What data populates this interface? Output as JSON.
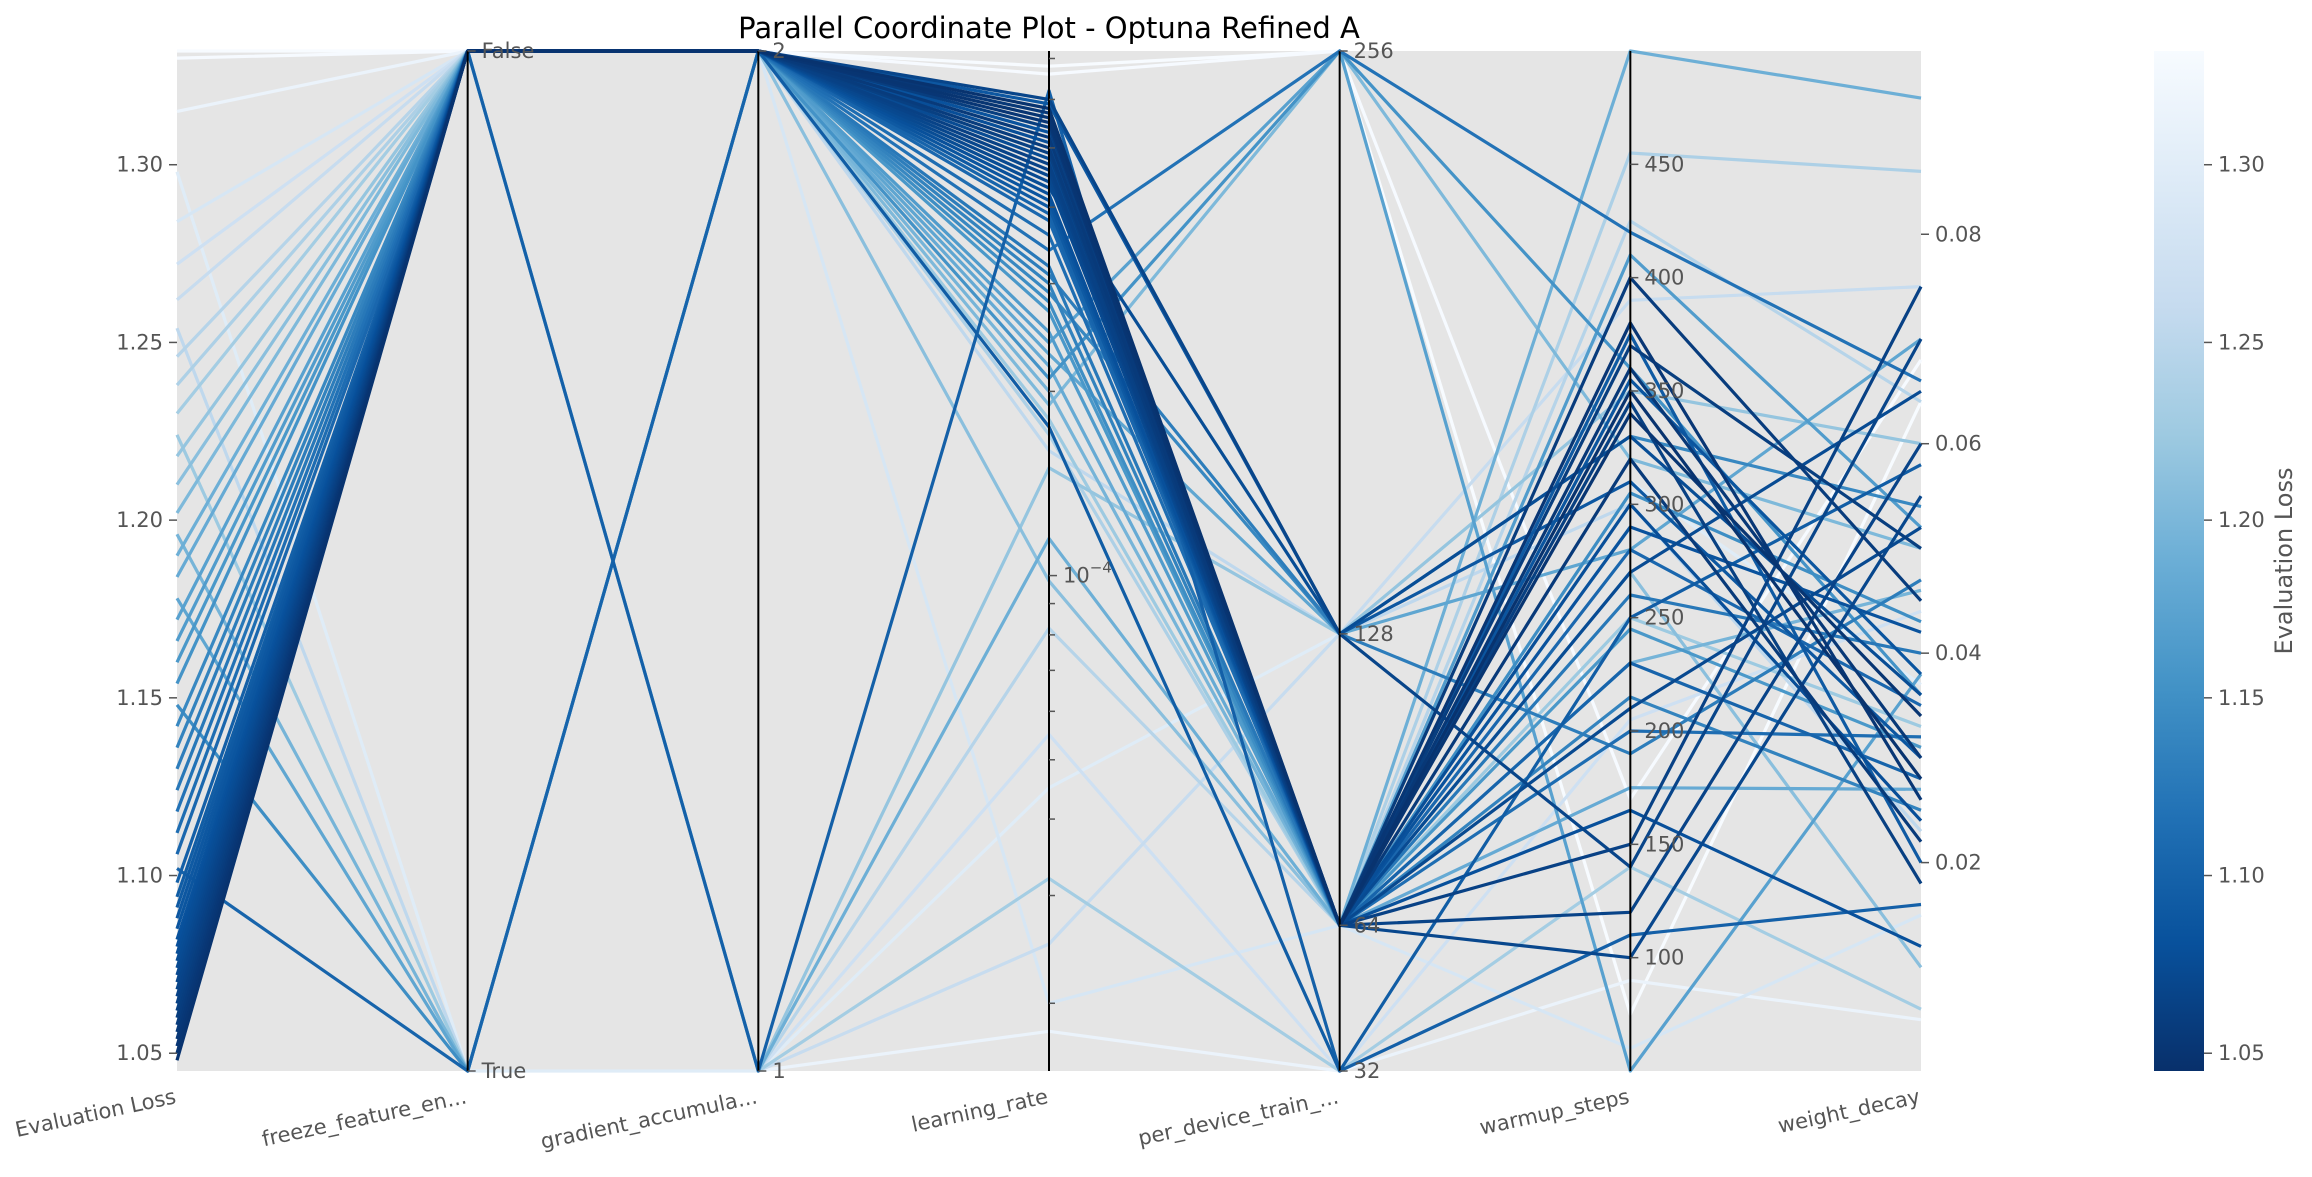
{
  "chart_data": {
    "type": "parallel_coordinates",
    "title": "Parallel Coordinate Plot - Optuna Refined A",
    "axes": [
      {
        "key": "eval",
        "label": "Evaluation Loss",
        "scale": "linear",
        "range": [
          1.045,
          1.332
        ],
        "ticks": [
          {
            "value": 1.05,
            "label": "1.05"
          },
          {
            "value": 1.1,
            "label": "1.10"
          },
          {
            "value": 1.15,
            "label": "1.15"
          },
          {
            "value": 1.2,
            "label": "1.20"
          },
          {
            "value": 1.25,
            "label": "1.25"
          },
          {
            "value": 1.3,
            "label": "1.30"
          }
        ],
        "tick_side": "left"
      },
      {
        "key": "freeze",
        "label": "freeze_feature_en...",
        "scale": "categorical",
        "range": [
          0,
          1
        ],
        "ticks": [
          {
            "value": 0,
            "label": "True"
          },
          {
            "value": 1,
            "label": "False"
          }
        ],
        "tick_side": "right"
      },
      {
        "key": "grad",
        "label": "gradient_accumula...",
        "scale": "categorical",
        "range": [
          1,
          2
        ],
        "ticks": [
          {
            "value": 1,
            "label": "1"
          },
          {
            "value": 2,
            "label": "2"
          }
        ],
        "tick_side": "right"
      },
      {
        "key": "lr",
        "label": "learning_rate",
        "scale": "log",
        "range": [
          1.55e-05,
          0.00072
        ],
        "ticks": [
          {
            "value": 0.0001,
            "label": "10",
            "sup": "−4"
          }
        ],
        "minor_ticks": [
          2e-05,
          3e-05,
          4e-05,
          5e-05,
          6e-05,
          7e-05,
          8e-05,
          9e-05,
          0.0002,
          0.0003,
          0.0004,
          0.0005,
          0.0006,
          0.0007
        ],
        "tick_side": "right"
      },
      {
        "key": "batch",
        "label": "per_device_train_...",
        "scale": "categorical",
        "range": [
          32,
          256
        ],
        "ticks": [
          {
            "value": 32,
            "label": "32"
          },
          {
            "value": 64,
            "label": "64"
          },
          {
            "value": 128,
            "label": "128"
          },
          {
            "value": 256,
            "label": "256"
          }
        ],
        "tick_side": "right"
      },
      {
        "key": "warm",
        "label": "warmup_steps",
        "scale": "linear",
        "range": [
          50,
          500
        ],
        "ticks": [
          {
            "value": 100,
            "label": "100"
          },
          {
            "value": 150,
            "label": "150"
          },
          {
            "value": 200,
            "label": "200"
          },
          {
            "value": 250,
            "label": "250"
          },
          {
            "value": 300,
            "label": "300"
          },
          {
            "value": 350,
            "label": "350"
          },
          {
            "value": 400,
            "label": "400"
          },
          {
            "value": 450,
            "label": "450"
          }
        ],
        "tick_side": "right"
      },
      {
        "key": "wd",
        "label": "weight_decay",
        "scale": "linear",
        "range": [
          0.0001,
          0.0975
        ],
        "ticks": [
          {
            "value": 0.02,
            "label": "0.02"
          },
          {
            "value": 0.04,
            "label": "0.04"
          },
          {
            "value": 0.06,
            "label": "0.06"
          },
          {
            "value": 0.08,
            "label": "0.08"
          }
        ],
        "tick_side": "right"
      }
    ],
    "colorbar": {
      "label": "Evaluation Loss",
      "range": [
        1.045,
        1.332
      ],
      "ticks": [
        {
          "value": 1.05,
          "label": "1.05"
        },
        {
          "value": 1.1,
          "label": "1.10"
        },
        {
          "value": 1.15,
          "label": "1.15"
        },
        {
          "value": 1.2,
          "label": "1.20"
        },
        {
          "value": 1.25,
          "label": "1.25"
        },
        {
          "value": 1.3,
          "label": "1.30"
        }
      ],
      "colors": [
        "#08306b",
        "#08519c",
        "#2171b5",
        "#4292c6",
        "#6baed6",
        "#9ecae1",
        "#c6dbef",
        "#deebf7",
        "#f7fbff"
      ]
    },
    "trials": [
      {
        "eval": 1.048,
        "freeze": 1,
        "grad": 2,
        "lr": 0.00058,
        "batch": 64,
        "warm": 350,
        "wd": 0.028
      },
      {
        "eval": 1.05,
        "freeze": 1,
        "grad": 2,
        "lr": 0.00056,
        "batch": 64,
        "warm": 340,
        "wd": 0.034
      },
      {
        "eval": 1.052,
        "freeze": 1,
        "grad": 2,
        "lr": 0.00055,
        "batch": 64,
        "warm": 380,
        "wd": 0.026
      },
      {
        "eval": 1.054,
        "freeze": 1,
        "grad": 2,
        "lr": 0.00057,
        "batch": 64,
        "warm": 360,
        "wd": 0.03
      },
      {
        "eval": 1.056,
        "freeze": 1,
        "grad": 2,
        "lr": 0.00052,
        "batch": 64,
        "warm": 320,
        "wd": 0.022
      },
      {
        "eval": 1.058,
        "freeze": 1,
        "grad": 2,
        "lr": 0.0005,
        "batch": 64,
        "warm": 400,
        "wd": 0.045
      },
      {
        "eval": 1.06,
        "freeze": 1,
        "grad": 2,
        "lr": 0.00054,
        "batch": 64,
        "warm": 370,
        "wd": 0.05
      },
      {
        "eval": 1.062,
        "freeze": 1,
        "grad": 2,
        "lr": 0.00049,
        "batch": 64,
        "warm": 345,
        "wd": 0.018
      },
      {
        "eval": 1.064,
        "freeze": 1,
        "grad": 2,
        "lr": 0.00047,
        "batch": 64,
        "warm": 150,
        "wd": 0.075
      },
      {
        "eval": 1.066,
        "freeze": 1,
        "grad": 2,
        "lr": 0.00046,
        "batch": 64,
        "warm": 120,
        "wd": 0.06
      },
      {
        "eval": 1.068,
        "freeze": 1,
        "grad": 2,
        "lr": 0.0006,
        "batch": 128,
        "warm": 140,
        "wd": 0.07
      },
      {
        "eval": 1.07,
        "freeze": 1,
        "grad": 2,
        "lr": 0.00045,
        "batch": 64,
        "warm": 100,
        "wd": 0.055
      },
      {
        "eval": 1.072,
        "freeze": 1,
        "grad": 2,
        "lr": 0.00044,
        "batch": 64,
        "warm": 210,
        "wd": 0.052
      },
      {
        "eval": 1.074,
        "freeze": 1,
        "grad": 2,
        "lr": 0.00048,
        "batch": 64,
        "warm": 270,
        "wd": 0.065
      },
      {
        "eval": 1.076,
        "freeze": 1,
        "grad": 2,
        "lr": 0.00043,
        "batch": 128,
        "warm": 330,
        "wd": 0.036
      },
      {
        "eval": 1.078,
        "freeze": 1,
        "grad": 2,
        "lr": 0.00051,
        "batch": 64,
        "warm": 300,
        "wd": 0.024
      },
      {
        "eval": 1.08,
        "freeze": 1,
        "grad": 2,
        "lr": 0.00042,
        "batch": 64,
        "warm": 165,
        "wd": 0.012
      },
      {
        "eval": 1.082,
        "freeze": 1,
        "grad": 2,
        "lr": 0.00053,
        "batch": 64,
        "warm": 290,
        "wd": 0.042
      },
      {
        "eval": 1.085,
        "freeze": 1,
        "grad": 2,
        "lr": 0.00041,
        "batch": 64,
        "warm": 355,
        "wd": 0.038
      },
      {
        "eval": 1.088,
        "freeze": 1,
        "grad": 2,
        "lr": 0.00059,
        "batch": 128,
        "warm": 310,
        "wd": 0.03
      },
      {
        "eval": 1.091,
        "freeze": 1,
        "grad": 2,
        "lr": 0.0004,
        "batch": 64,
        "warm": 375,
        "wd": 0.02
      },
      {
        "eval": 1.094,
        "freeze": 1,
        "grad": 2,
        "lr": 0.000175,
        "batch": 32,
        "warm": 250,
        "wd": 0.058
      },
      {
        "eval": 1.098,
        "freeze": 1,
        "grad": 1,
        "lr": 0.00062,
        "batch": 32,
        "warm": 110,
        "wd": 0.016
      },
      {
        "eval": 1.102,
        "freeze": 0,
        "grad": 2,
        "lr": 0.00039,
        "batch": 64,
        "warm": 230,
        "wd": 0.028
      },
      {
        "eval": 1.106,
        "freeze": 1,
        "grad": 2,
        "lr": 0.00038,
        "batch": 64,
        "warm": 280,
        "wd": 0.035
      },
      {
        "eval": 1.112,
        "freeze": 1,
        "grad": 2,
        "lr": 0.00036,
        "batch": 64,
        "warm": 200,
        "wd": 0.032
      },
      {
        "eval": 1.118,
        "freeze": 1,
        "grad": 2,
        "lr": 0.00034,
        "batch": 256,
        "warm": 420,
        "wd": 0.066
      },
      {
        "eval": 1.124,
        "freeze": 1,
        "grad": 2,
        "lr": 0.00032,
        "batch": 64,
        "warm": 260,
        "wd": 0.04
      },
      {
        "eval": 1.13,
        "freeze": 1,
        "grad": 2,
        "lr": 0.00031,
        "batch": 128,
        "warm": 190,
        "wd": 0.047
      },
      {
        "eval": 1.136,
        "freeze": 1,
        "grad": 2,
        "lr": 0.0003,
        "batch": 64,
        "warm": 215,
        "wd": 0.025
      },
      {
        "eval": 1.142,
        "freeze": 1,
        "grad": 2,
        "lr": 0.00029,
        "batch": 128,
        "warm": 330,
        "wd": 0.054
      },
      {
        "eval": 1.148,
        "freeze": 0,
        "grad": 2,
        "lr": 0.00028,
        "batch": 64,
        "warm": 305,
        "wd": 0.043
      },
      {
        "eval": 1.154,
        "freeze": 1,
        "grad": 2,
        "lr": 0.00021,
        "batch": 256,
        "warm": 360,
        "wd": 0.036
      },
      {
        "eval": 1.16,
        "freeze": 1,
        "grad": 2,
        "lr": 0.00027,
        "batch": 64,
        "warm": 245,
        "wd": 0.031
      },
      {
        "eval": 1.166,
        "freeze": 1,
        "grad": 2,
        "lr": 0.00025,
        "batch": 64,
        "warm": 410,
        "wd": 0.052
      },
      {
        "eval": 1.172,
        "freeze": 1,
        "grad": 2,
        "lr": 0.00024,
        "batch": 256,
        "warm": 50,
        "wd": 0.038
      },
      {
        "eval": 1.178,
        "freeze": 0,
        "grad": 2,
        "lr": 0.00023,
        "batch": 128,
        "warm": 280,
        "wd": 0.07
      },
      {
        "eval": 1.184,
        "freeze": 1,
        "grad": 2,
        "lr": 0.00022,
        "batch": 64,
        "warm": 175,
        "wd": 0.027
      },
      {
        "eval": 1.19,
        "freeze": 1,
        "grad": 1,
        "lr": 0.000115,
        "batch": 64,
        "warm": 500,
        "wd": 0.093
      },
      {
        "eval": 1.196,
        "freeze": 0,
        "grad": 2,
        "lr": 0.0002,
        "batch": 64,
        "warm": 230,
        "wd": 0.046
      },
      {
        "eval": 1.202,
        "freeze": 1,
        "grad": 2,
        "lr": 0.00019,
        "batch": 256,
        "warm": 320,
        "wd": 0.05
      },
      {
        "eval": 1.21,
        "freeze": 1,
        "grad": 2,
        "lr": 9.8e-05,
        "batch": 64,
        "warm": 270,
        "wd": 0.01
      },
      {
        "eval": 1.218,
        "freeze": 1,
        "grad": 1,
        "lr": 0.00015,
        "batch": 128,
        "warm": 350,
        "wd": 0.06
      },
      {
        "eval": 1.224,
        "freeze": 0,
        "grad": 2,
        "lr": 0.00018,
        "batch": 64,
        "warm": 250,
        "wd": 0.033
      },
      {
        "eval": 1.23,
        "freeze": 1,
        "grad": 1,
        "lr": 3.2e-05,
        "batch": 32,
        "warm": 140,
        "wd": 0.006
      },
      {
        "eval": 1.238,
        "freeze": 1,
        "grad": 2,
        "lr": 0.00017,
        "batch": 64,
        "warm": 455,
        "wd": 0.086
      },
      {
        "eval": 1.246,
        "freeze": 1,
        "grad": 1,
        "lr": 8.2e-05,
        "batch": 64,
        "warm": 425,
        "wd": 0.064
      },
      {
        "eval": 1.254,
        "freeze": 0,
        "grad": 2,
        "lr": 0.00016,
        "batch": 128,
        "warm": 300,
        "wd": 0.023
      },
      {
        "eval": 1.262,
        "freeze": 1,
        "grad": 1,
        "lr": 2.5e-05,
        "batch": 128,
        "warm": 390,
        "wd": 0.075
      },
      {
        "eval": 1.272,
        "freeze": 1,
        "grad": 1,
        "lr": 5.5e-05,
        "batch": 32,
        "warm": 205,
        "wd": 0.044
      },
      {
        "eval": 1.284,
        "freeze": 1,
        "grad": 2,
        "lr": 2e-05,
        "batch": 64,
        "warm": 60,
        "wd": 0.015
      },
      {
        "eval": 1.298,
        "freeze": 0,
        "grad": 1,
        "lr": 4.5e-05,
        "batch": 128,
        "warm": 310,
        "wd": 0.037
      },
      {
        "eval": 1.315,
        "freeze": 1,
        "grad": 1,
        "lr": 1.8e-05,
        "batch": 32,
        "warm": 90,
        "wd": 0.005
      },
      {
        "eval": 1.332,
        "freeze": 1,
        "grad": 2,
        "lr": 0.00068,
        "batch": 256,
        "warm": 75,
        "wd": 0.064
      },
      {
        "eval": 1.33,
        "freeze": 1,
        "grad": 2,
        "lr": 0.00066,
        "batch": 256,
        "warm": 170,
        "wd": 0.068
      }
    ]
  }
}
